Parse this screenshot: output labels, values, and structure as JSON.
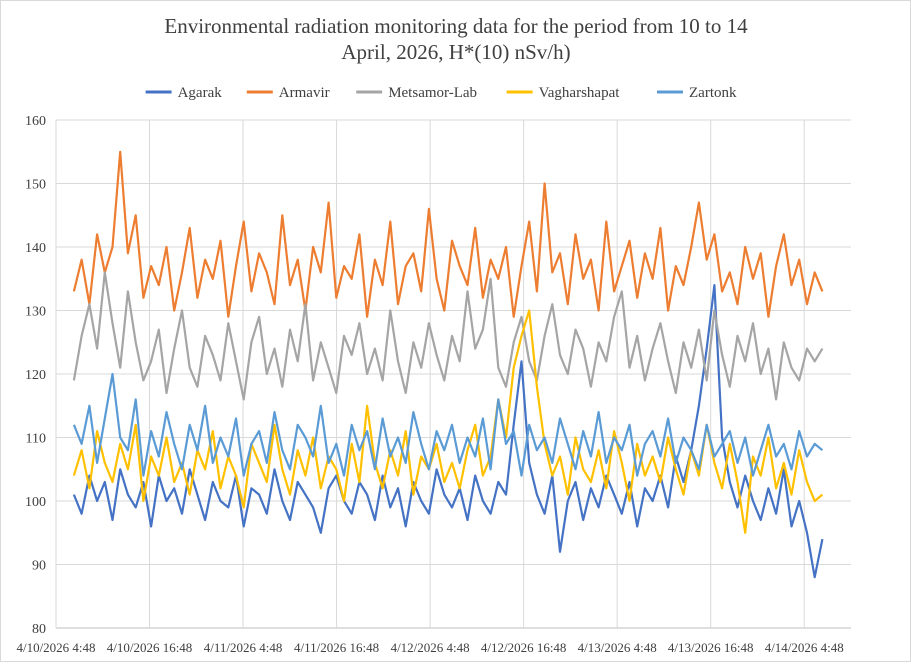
{
  "chart_data": {
    "type": "line",
    "title_line1": "Environmental radiation monitoring data for the period from 10 to 14",
    "title_line2": "April, 2026, H*(10) nSv/h)",
    "xlabel": "",
    "ylabel": "",
    "ylim": [
      80,
      160
    ],
    "yticks": [
      80,
      90,
      100,
      110,
      120,
      130,
      140,
      150,
      160
    ],
    "xtick_labels": [
      "4/10/2026 4:48",
      "4/10/2026 16:48",
      "4/11/2026 4:48",
      "4/11/2026 16:48",
      "4/12/2026 4:48",
      "4/12/2026 16:48",
      "4/13/2026 4:48",
      "4/13/2026 16:48",
      "4/14/2026 4:48"
    ],
    "x_units": "hours since 4/10/2026 4:48",
    "xlim_hours": [
      0,
      102
    ],
    "x_start_hours": 2.3,
    "x_step_hours": 0.99,
    "grid": true,
    "legend_position": "top",
    "series": [
      {
        "name": "Agarak",
        "color": "#4472C4",
        "values": [
          101,
          98,
          104,
          100,
          103,
          97,
          105,
          101,
          99,
          103,
          96,
          104,
          100,
          102,
          98,
          105,
          101,
          97,
          103,
          100,
          99,
          104,
          96,
          102,
          101,
          98,
          105,
          100,
          97,
          103,
          101,
          99,
          95,
          102,
          104,
          100,
          98,
          103,
          101,
          97,
          104,
          99,
          102,
          96,
          103,
          100,
          98,
          105,
          101,
          99,
          102,
          97,
          104,
          100,
          98,
          103,
          101,
          112,
          122,
          106,
          101,
          98,
          104,
          92,
          100,
          103,
          97,
          102,
          99,
          104,
          101,
          98,
          103,
          96,
          102,
          100,
          104,
          99,
          107,
          103,
          108,
          115,
          124,
          134,
          110,
          103,
          99,
          104,
          100,
          97,
          102,
          98,
          105,
          96,
          100,
          95,
          88,
          94
        ]
      },
      {
        "name": "Armavir",
        "color": "#ED7D31",
        "values": [
          133,
          138,
          131,
          142,
          136,
          140,
          155,
          139,
          145,
          132,
          137,
          134,
          140,
          130,
          136,
          143,
          132,
          138,
          135,
          141,
          129,
          137,
          144,
          133,
          139,
          136,
          131,
          145,
          134,
          138,
          130,
          140,
          136,
          147,
          132,
          137,
          135,
          142,
          129,
          138,
          134,
          144,
          131,
          137,
          139,
          133,
          146,
          135,
          130,
          141,
          137,
          134,
          143,
          132,
          138,
          135,
          140,
          129,
          137,
          144,
          133,
          150,
          136,
          139,
          131,
          142,
          135,
          138,
          130,
          144,
          133,
          137,
          141,
          132,
          139,
          135,
          143,
          130,
          137,
          134,
          140,
          147,
          138,
          142,
          133,
          136,
          131,
          140,
          135,
          139,
          129,
          137,
          142,
          134,
          138,
          131,
          136,
          133
        ]
      },
      {
        "name": "Metsamor-Lab",
        "color": "#A5A5A5",
        "values": [
          119,
          126,
          131,
          124,
          136,
          128,
          121,
          133,
          125,
          119,
          122,
          127,
          117,
          124,
          130,
          121,
          118,
          126,
          123,
          119,
          128,
          122,
          116,
          125,
          129,
          120,
          124,
          118,
          127,
          122,
          131,
          119,
          125,
          121,
          117,
          126,
          123,
          128,
          120,
          124,
          119,
          130,
          122,
          117,
          125,
          121,
          128,
          123,
          119,
          126,
          122,
          133,
          124,
          127,
          135,
          121,
          118,
          125,
          129,
          122,
          119,
          126,
          131,
          123,
          120,
          127,
          124,
          118,
          125,
          122,
          129,
          133,
          121,
          126,
          119,
          124,
          128,
          122,
          117,
          125,
          121,
          127,
          119,
          130,
          123,
          118,
          126,
          122,
          128,
          120,
          124,
          116,
          125,
          121,
          119,
          124,
          122,
          124
        ]
      },
      {
        "name": "Vagharshapat",
        "color": "#FFC000",
        "values": [
          104,
          108,
          102,
          111,
          106,
          103,
          109,
          105,
          112,
          100,
          107,
          104,
          110,
          103,
          106,
          101,
          108,
          105,
          111,
          102,
          107,
          104,
          99,
          109,
          106,
          103,
          112,
          105,
          101,
          108,
          104,
          110,
          102,
          107,
          105,
          100,
          109,
          103,
          115,
          106,
          102,
          108,
          104,
          111,
          101,
          107,
          105,
          109,
          103,
          106,
          102,
          108,
          112,
          104,
          107,
          116,
          110,
          121,
          126,
          130,
          118,
          109,
          104,
          107,
          101,
          110,
          105,
          103,
          108,
          102,
          111,
          106,
          100,
          109,
          104,
          107,
          103,
          110,
          105,
          101,
          108,
          104,
          112,
          106,
          102,
          109,
          103,
          95,
          107,
          104,
          110,
          102,
          106,
          101,
          108,
          103,
          100,
          101
        ]
      },
      {
        "name": "Zartonk",
        "color": "#5B9BD5",
        "values": [
          112,
          109,
          115,
          106,
          113,
          120,
          110,
          108,
          116,
          104,
          111,
          107,
          114,
          109,
          105,
          112,
          108,
          115,
          106,
          110,
          107,
          113,
          104,
          109,
          111,
          106,
          114,
          108,
          105,
          112,
          110,
          107,
          115,
          106,
          109,
          104,
          112,
          108,
          111,
          105,
          113,
          107,
          110,
          106,
          114,
          109,
          105,
          111,
          108,
          112,
          106,
          110,
          107,
          113,
          105,
          116,
          109,
          111,
          104,
          112,
          108,
          110,
          106,
          113,
          109,
          105,
          111,
          107,
          114,
          106,
          110,
          108,
          112,
          104,
          109,
          111,
          107,
          113,
          106,
          110,
          108,
          105,
          112,
          107,
          109,
          111,
          106,
          110,
          104,
          108,
          112,
          107,
          109,
          105,
          111,
          107,
          109,
          108
        ]
      }
    ]
  }
}
